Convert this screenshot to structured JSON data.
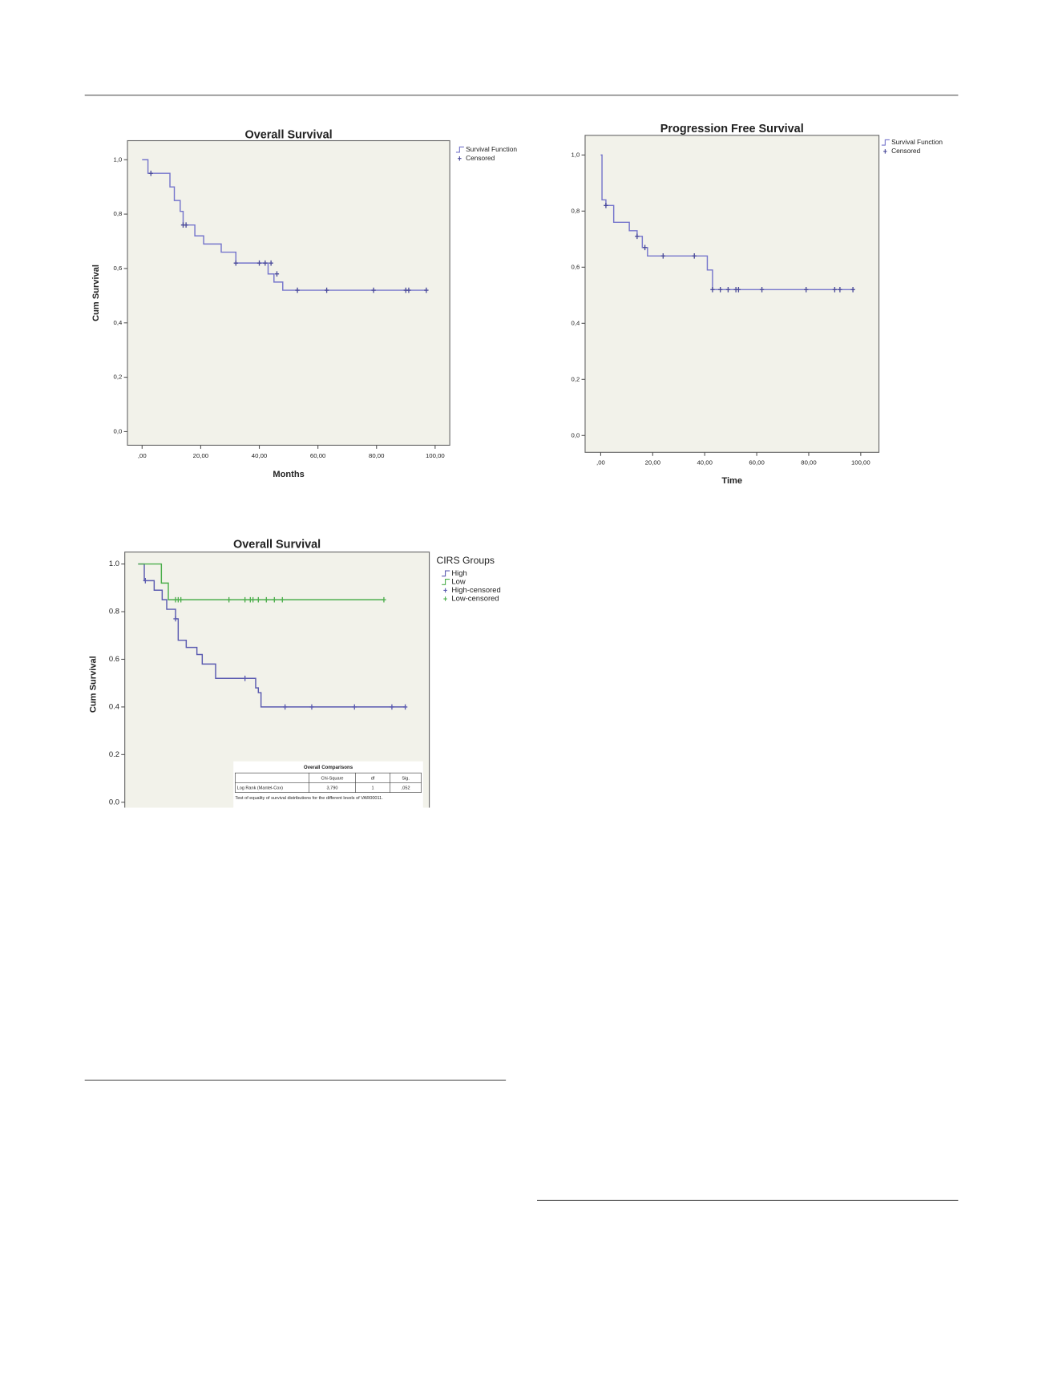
{
  "chart_data": [
    {
      "type": "step",
      "title": "Overall Survival",
      "x_label": "Months",
      "y_label": "Cum Survival",
      "xlim": [
        -5,
        105
      ],
      "ylim": [
        -0.05,
        1.07
      ],
      "xticks": [
        {
          "value": 0,
          "label": ",00"
        },
        {
          "value": 20,
          "label": "20,00"
        },
        {
          "value": 40,
          "label": "40,00"
        },
        {
          "value": 60,
          "label": "60,00"
        },
        {
          "value": 80,
          "label": "80,00"
        },
        {
          "value": 100,
          "label": "100,00"
        }
      ],
      "yticks": [
        {
          "value": 0,
          "label": "0,0"
        },
        {
          "value": 0.2,
          "label": "0,2"
        },
        {
          "value": 0.4,
          "label": "0,4"
        },
        {
          "value": 0.6,
          "label": "0,6"
        },
        {
          "value": 0.8,
          "label": "0,8"
        },
        {
          "value": 1,
          "label": "1,0"
        }
      ],
      "series": [
        {
          "name": "Survival Function",
          "color": "#7676cc",
          "x": [
            0,
            2,
            9.5,
            11,
            13,
            14,
            18,
            21,
            27,
            32,
            43,
            45,
            48,
            97
          ],
          "values": [
            1,
            0.95,
            0.9,
            0.85,
            0.81,
            0.76,
            0.72,
            0.69,
            0.66,
            0.62,
            0.58,
            0.55,
            0.52,
            0.52
          ]
        },
        {
          "name": "Censored",
          "color": "#4a4a9a",
          "marker": "+",
          "x": [
            3,
            14,
            15,
            32,
            40,
            42,
            44,
            46,
            53,
            63,
            79,
            90,
            91,
            97
          ],
          "values": [
            0.95,
            0.76,
            0.76,
            0.62,
            0.62,
            0.62,
            0.62,
            0.58,
            0.52,
            0.52,
            0.52,
            0.52,
            0.52,
            0.52
          ]
        }
      ]
    },
    {
      "type": "step",
      "title": "Progression Free Survival",
      "x_label": "Time",
      "xlim": [
        -6,
        107
      ],
      "ylim": [
        -0.06,
        1.07
      ],
      "xticks": [
        {
          "value": 0,
          "label": ",00"
        },
        {
          "value": 20,
          "label": "20,00"
        },
        {
          "value": 40,
          "label": "40,00"
        },
        {
          "value": 60,
          "label": "60,00"
        },
        {
          "value": 80,
          "label": "80,00"
        },
        {
          "value": 100,
          "label": "100,00"
        }
      ],
      "yticks": [
        {
          "value": 0,
          "label": "0,0"
        },
        {
          "value": 0.2,
          "label": "0,2"
        },
        {
          "value": 0.4,
          "label": "0,4"
        },
        {
          "value": 0.6,
          "label": "0,6"
        },
        {
          "value": 0.8,
          "label": "0,8"
        },
        {
          "value": 1,
          "label": "1,0"
        }
      ],
      "series": [
        {
          "name": "Survival Function",
          "color": "#7676cc",
          "x": [
            0,
            0.5,
            2,
            5,
            11,
            14,
            16,
            18,
            41,
            43,
            97.5
          ],
          "values": [
            1,
            0.84,
            0.82,
            0.76,
            0.73,
            0.71,
            0.67,
            0.64,
            0.59,
            0.52,
            0.52
          ]
        },
        {
          "name": "Censored",
          "color": "#4a4a9a",
          "marker": "+",
          "x": [
            2,
            14,
            17,
            24,
            36,
            43,
            46,
            49,
            52,
            53,
            62,
            79,
            90,
            92,
            97
          ],
          "values": [
            0.82,
            0.71,
            0.67,
            0.64,
            0.64,
            0.52,
            0.52,
            0.52,
            0.52,
            0.52,
            0.52,
            0.52,
            0.52,
            0.52,
            0.52
          ]
        }
      ]
    },
    {
      "type": "step",
      "title": "Overall Survival",
      "y_label": "Cum Survival",
      "legend_title": "CIRS Groups",
      "xlim": [
        -5,
        109
      ],
      "ylim": [
        -0.06,
        1.05
      ],
      "yticks": [
        {
          "value": 0,
          "label": "0.0"
        },
        0.2,
        0.4,
        0.6,
        0.8,
        {
          "value": 1,
          "label": "1.0"
        }
      ],
      "series": [
        {
          "name": "High",
          "color": "#5a5ab0",
          "x": [
            0,
            2.3,
            6,
            9,
            10.7,
            14,
            15,
            18,
            22,
            24,
            29,
            44,
            45,
            46,
            100
          ],
          "values": [
            1,
            0.93,
            0.89,
            0.85,
            0.81,
            0.77,
            0.68,
            0.65,
            0.62,
            0.58,
            0.52,
            0.48,
            0.46,
            0.4,
            0.4
          ]
        },
        {
          "name": "Low",
          "color": "#4cae4c",
          "x": [
            0,
            8.7,
            11.3,
            92
          ],
          "values": [
            1,
            0.92,
            0.85,
            0.85
          ]
        },
        {
          "name": "High-censored",
          "color": "#5a5ab0",
          "marker": "+",
          "x": [
            2.7,
            14,
            40,
            55,
            65,
            81,
            95,
            100
          ],
          "values": [
            0.93,
            0.77,
            0.52,
            0.4,
            0.4,
            0.4,
            0.4,
            0.4
          ]
        },
        {
          "name": "Low-censored",
          "color": "#4cae4c",
          "marker": "+",
          "x": [
            14,
            15,
            16,
            34,
            40,
            42,
            43,
            45,
            48,
            51,
            54,
            92
          ],
          "values": [
            0.85,
            0.85,
            0.85,
            0.85,
            0.85,
            0.85,
            0.85,
            0.85,
            0.85,
            0.85,
            0.85,
            0.85
          ]
        }
      ],
      "table": {
        "title": "Overall Comparisons",
        "columns": [
          "Chi-Square",
          "df",
          "Sig."
        ],
        "rows": [
          [
            "Log Rank (Mantel-Cox)",
            "3,790",
            "1",
            ",052"
          ]
        ],
        "note": "Test of equality of survival distributions for the different levels of VAR00011."
      }
    }
  ]
}
